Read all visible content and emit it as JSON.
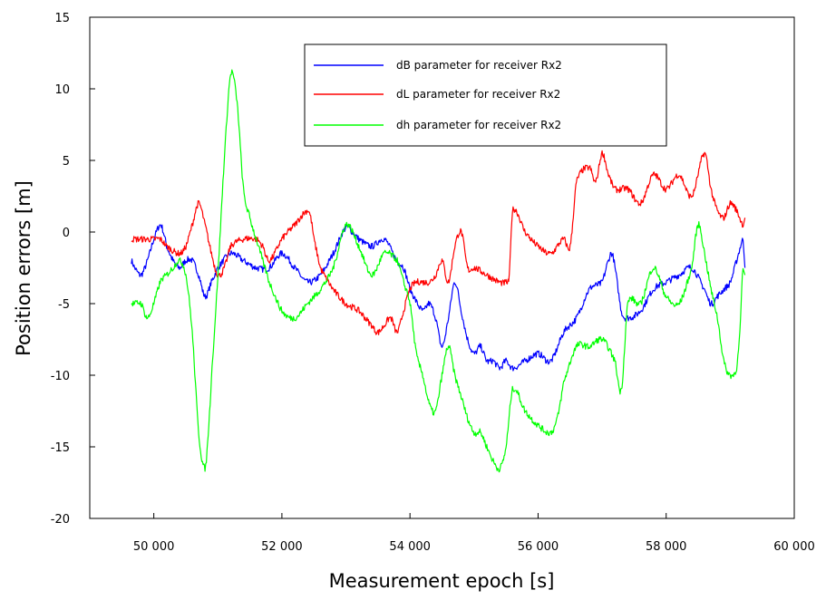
{
  "chart_data": {
    "type": "line",
    "xlabel": "Measurement epoch [s]",
    "ylabel": "Position errors [m]",
    "xlim": [
      49000,
      60000
    ],
    "ylim": [
      -20,
      15
    ],
    "x_ticks": [
      50000,
      52000,
      54000,
      56000,
      58000,
      60000
    ],
    "x_tick_labels": [
      "50 000",
      "52 000",
      "54 000",
      "56 000",
      "58 000",
      "60 000"
    ],
    "y_ticks": [
      15,
      10,
      5,
      0,
      -5,
      -10,
      -15,
      -20
    ],
    "y_tick_labels": [
      "15",
      "10",
      "5",
      "0",
      "-5",
      "-10",
      "-15",
      "-20"
    ],
    "grid": false,
    "legend_position": "top-center",
    "series": [
      {
        "name": "dB parameter for receiver Rx2",
        "color": "#0000ff",
        "x": [
          49650,
          49700,
          49800,
          49900,
          50000,
          50100,
          50150,
          50200,
          50300,
          50400,
          50500,
          50600,
          50700,
          50800,
          50900,
          51000,
          51200,
          51400,
          51600,
          51800,
          52000,
          52200,
          52400,
          52600,
          52800,
          53000,
          53100,
          53200,
          53400,
          53600,
          53800,
          53900,
          54000,
          54200,
          54300,
          54400,
          54500,
          54600,
          54700,
          54800,
          54900,
          55000,
          55100,
          55200,
          55300,
          55400,
          55500,
          55600,
          55800,
          56000,
          56200,
          56400,
          56600,
          56800,
          57000,
          57100,
          57150,
          57200,
          57300,
          57400,
          57600,
          57800,
          58000,
          58200,
          58400,
          58600,
          58700,
          58800,
          58900,
          59000,
          59100,
          59200
        ],
        "y": [
          -2.0,
          -2.5,
          -3.0,
          -2.0,
          -0.5,
          0.5,
          0.0,
          -1.0,
          -2.0,
          -2.5,
          -2.0,
          -2.0,
          -3.0,
          -4.5,
          -3.5,
          -2.5,
          -1.5,
          -2.0,
          -2.5,
          -2.5,
          -1.5,
          -2.5,
          -3.5,
          -3.0,
          -1.5,
          0.3,
          0.0,
          -0.5,
          -1.0,
          -0.5,
          -2.0,
          -2.5,
          -4.0,
          -5.5,
          -5.0,
          -6.0,
          -8.0,
          -6.0,
          -3.5,
          -5.5,
          -7.5,
          -8.5,
          -8.0,
          -9.0,
          -9.0,
          -9.5,
          -9.0,
          -9.5,
          -9.0,
          -8.5,
          -9.0,
          -7.0,
          -6.0,
          -4.0,
          -3.5,
          -2.0,
          -1.5,
          -2.5,
          -5.5,
          -6.0,
          -5.5,
          -4.0,
          -3.5,
          -3.0,
          -2.5,
          -4.0,
          -5.0,
          -4.5,
          -4.0,
          -3.5,
          -2.0,
          -0.5
        ],
        "end": [
          59230,
          -2.5
        ]
      },
      {
        "name": "dL parameter for receiver Rx2",
        "color": "#ff0000",
        "x": [
          49650,
          49800,
          49900,
          50000,
          50100,
          50200,
          50400,
          50500,
          50600,
          50700,
          50800,
          50900,
          51000,
          51100,
          51200,
          51400,
          51600,
          51700,
          51800,
          52000,
          52200,
          52400,
          52450,
          52500,
          52600,
          52800,
          53000,
          53200,
          53400,
          53500,
          53600,
          53700,
          53800,
          53900,
          54000,
          54100,
          54300,
          54400,
          54500,
          54600,
          54700,
          54800,
          54900,
          55000,
          55200,
          55400,
          55500,
          55550,
          55600,
          55800,
          56000,
          56200,
          56400,
          56500,
          56600,
          56800,
          56900,
          57000,
          57100,
          57200,
          57400,
          57600,
          57800,
          58000,
          58200,
          58400,
          58600,
          58700,
          58800,
          58900,
          59000,
          59100,
          59200
        ],
        "y": [
          -0.5,
          -0.5,
          -0.5,
          -0.5,
          -0.5,
          -1.0,
          -1.5,
          -1.0,
          0.5,
          2.0,
          0.5,
          -1.5,
          -3.0,
          -2.5,
          -1.0,
          -0.5,
          -0.5,
          -1.0,
          -2.0,
          -0.5,
          0.5,
          1.5,
          1.0,
          -0.5,
          -2.5,
          -4.0,
          -5.0,
          -5.5,
          -6.5,
          -7.0,
          -6.5,
          -6.0,
          -7.0,
          -5.5,
          -4.0,
          -3.5,
          -3.5,
          -3.0,
          -2.0,
          -3.5,
          -1.0,
          0.0,
          -2.5,
          -2.5,
          -3.0,
          -3.5,
          -3.5,
          -3.0,
          1.5,
          0.0,
          -1.0,
          -1.5,
          -0.5,
          -1.0,
          3.5,
          4.5,
          3.5,
          5.5,
          4.0,
          3.0,
          3.0,
          2.0,
          4.0,
          3.0,
          4.0,
          2.5,
          5.5,
          3.0,
          1.5,
          1.0,
          2.0,
          1.5,
          0.5
        ],
        "end": [
          59230,
          1.0
        ]
      },
      {
        "name": "dh parameter for receiver Rx2",
        "color": "#00ff00",
        "x": [
          49650,
          49700,
          49800,
          49900,
          50000,
          50100,
          50200,
          50300,
          50400,
          50500,
          50600,
          50700,
          50800,
          50850,
          50900,
          51000,
          51100,
          51200,
          51300,
          51400,
          51500,
          51600,
          51700,
          51800,
          52000,
          52200,
          52400,
          52600,
          52800,
          53000,
          53200,
          53400,
          53600,
          53800,
          53900,
          54000,
          54100,
          54200,
          54300,
          54400,
          54500,
          54600,
          54700,
          54800,
          54900,
          55000,
          55100,
          55200,
          55300,
          55400,
          55500,
          55600,
          55800,
          56000,
          56200,
          56300,
          56400,
          56600,
          56800,
          57000,
          57200,
          57300,
          57400,
          57600,
          57800,
          58000,
          58200,
          58400,
          58500,
          58600,
          58700,
          58800,
          58900,
          59000,
          59100,
          59150,
          59200
        ],
        "y": [
          -5.0,
          -5.0,
          -5.0,
          -6.0,
          -5.0,
          -3.5,
          -3.0,
          -2.5,
          -2.0,
          -3.0,
          -7.0,
          -14.0,
          -16.5,
          -14.0,
          -10.0,
          -3.0,
          5.0,
          11.0,
          9.0,
          3.0,
          1.0,
          -0.5,
          -2.0,
          -3.5,
          -5.5,
          -6.0,
          -5.0,
          -4.0,
          -2.5,
          0.5,
          -1.0,
          -3.0,
          -1.5,
          -2.0,
          -3.5,
          -5.0,
          -8.5,
          -10.0,
          -12.0,
          -12.5,
          -10.0,
          -8.0,
          -10.0,
          -11.5,
          -13.0,
          -14.0,
          -14.0,
          -15.0,
          -16.0,
          -16.5,
          -15.0,
          -11.0,
          -12.5,
          -13.5,
          -14.0,
          -13.0,
          -10.5,
          -8.0,
          -8.0,
          -7.5,
          -9.0,
          -11.0,
          -5.0,
          -5.0,
          -2.5,
          -4.5,
          -5.0,
          -2.5,
          0.5,
          -1.5,
          -4.0,
          -6.0,
          -9.0,
          -10.0,
          -9.5,
          -7.0,
          -2.5
        ],
        "end": [
          59230,
          -3.0
        ]
      }
    ]
  }
}
